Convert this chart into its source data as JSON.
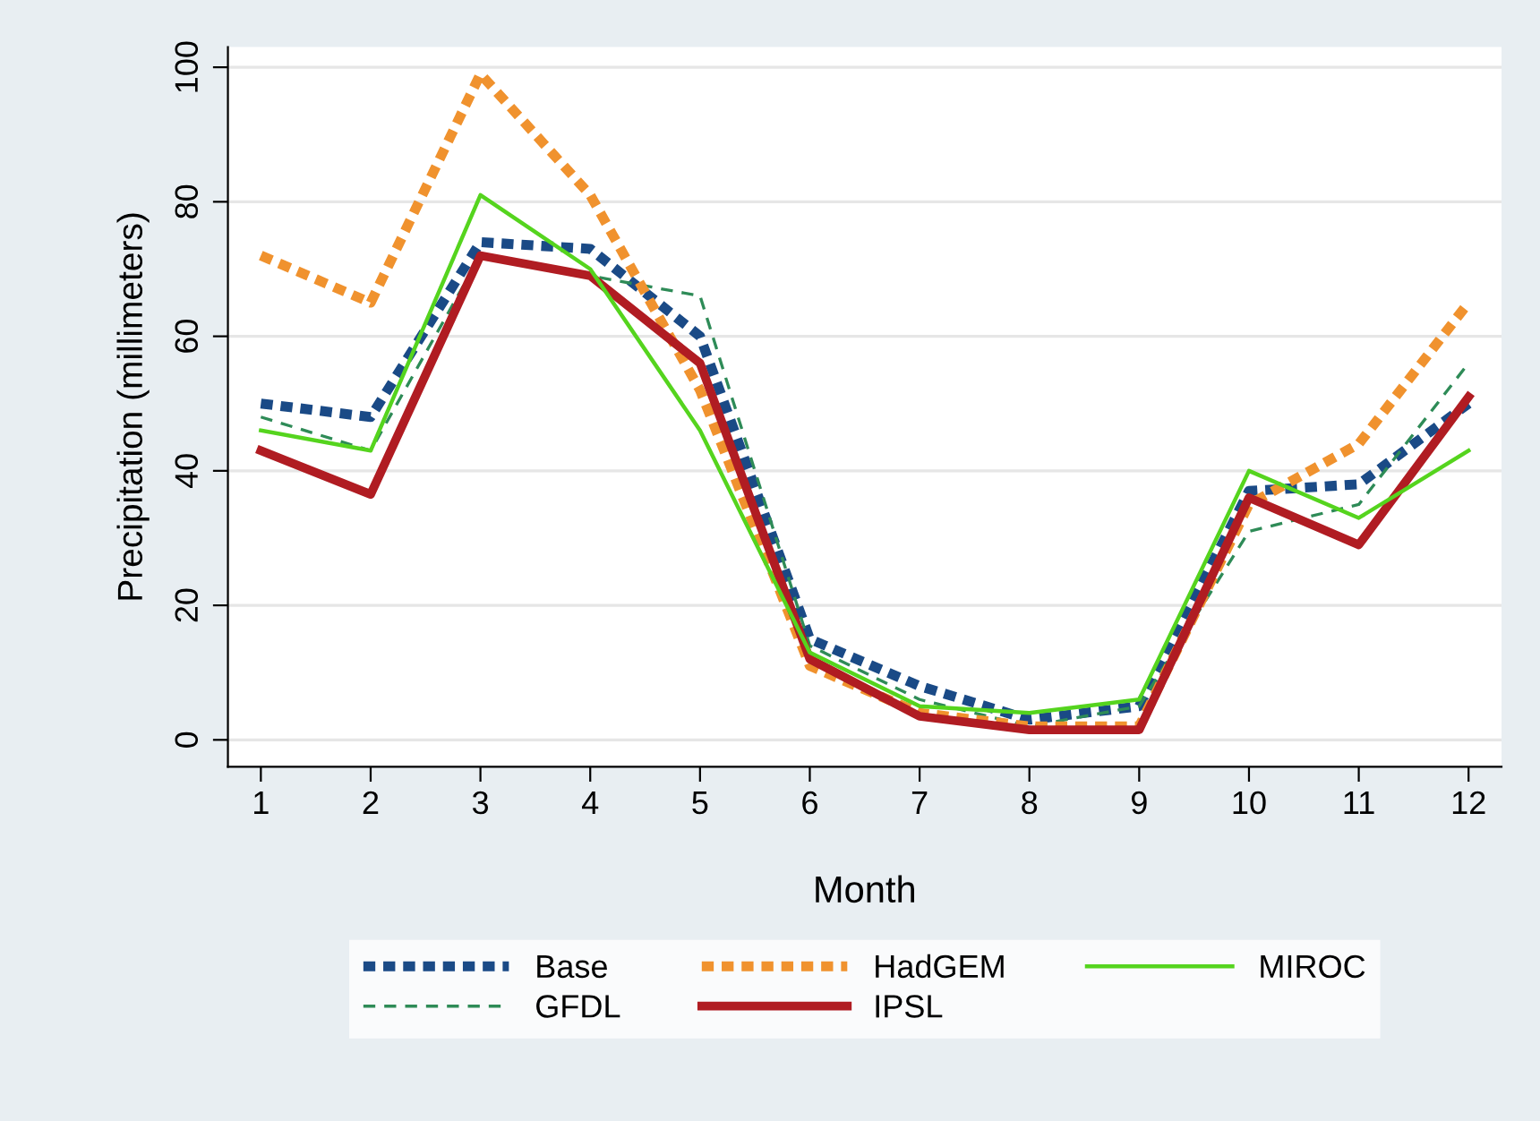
{
  "chart_data": {
    "type": "line",
    "xlabel": "Month",
    "ylabel": "Precipitation (millimeters)",
    "x": [
      1,
      2,
      3,
      4,
      5,
      6,
      7,
      8,
      9,
      10,
      11,
      12
    ],
    "xlim": [
      0.7,
      12.3
    ],
    "xticks": [
      1,
      2,
      3,
      4,
      5,
      6,
      7,
      8,
      9,
      10,
      11,
      12
    ],
    "ylim": [
      -4,
      103
    ],
    "yticks": [
      0,
      20,
      40,
      60,
      80,
      100
    ],
    "grid": "y",
    "legend": "bottom",
    "series": [
      {
        "name": "Base",
        "color": "#1a4a86",
        "line_style": "dotted",
        "values": [
          50,
          48,
          74,
          73,
          60,
          15,
          8,
          3,
          5,
          37,
          38,
          50
        ]
      },
      {
        "name": "GFDL",
        "color": "#2e8b57",
        "line_style": "dashed",
        "values": [
          48,
          43,
          72,
          69,
          66,
          14,
          6,
          2,
          5,
          31,
          35,
          56
        ]
      },
      {
        "name": "HadGEM",
        "color": "#f0922e",
        "line_style": "dotted",
        "values": [
          72,
          65,
          99,
          81,
          52,
          11,
          4,
          2,
          2,
          35,
          44,
          65
        ]
      },
      {
        "name": "IPSL",
        "color": "#b01c22",
        "line_style": "solid",
        "values": [
          43,
          36.5,
          72,
          69,
          56,
          12,
          3.5,
          1.5,
          1.5,
          36,
          29,
          51
        ]
      },
      {
        "name": "MIROC",
        "color": "#55d41e",
        "line_style": "solid",
        "values": [
          46,
          43,
          81,
          70,
          46,
          13,
          5,
          4,
          6,
          40,
          33,
          43
        ]
      }
    ]
  }
}
